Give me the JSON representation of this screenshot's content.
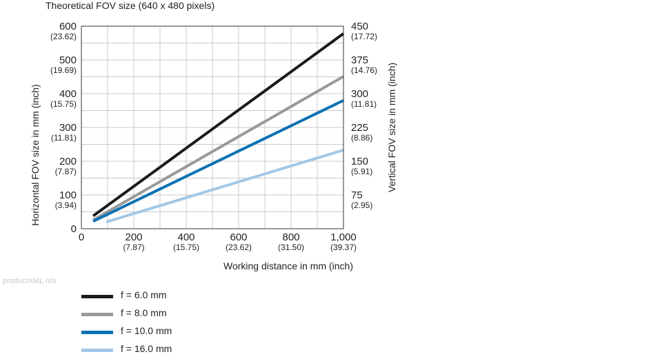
{
  "chart_data": {
    "type": "line",
    "title": "Theoretical FOV size (640 x 480 pixels)",
    "xlabel": "Working distance in mm (inch)",
    "ylabel_left": "Horizontal FOV size in mm (inch)",
    "ylabel_right": "Vertical FOV size in mm (inch)",
    "xlim": [
      0,
      1000
    ],
    "ylim_left": [
      0,
      600
    ],
    "ylim_right": [
      0,
      450
    ],
    "grid": true,
    "x_ticks": [
      {
        "value": 0,
        "main": "0",
        "sub": ""
      },
      {
        "value": 200,
        "main": "200",
        "sub": "(7.87)"
      },
      {
        "value": 400,
        "main": "400",
        "sub": "(15.75)"
      },
      {
        "value": 600,
        "main": "600",
        "sub": "(23.62)"
      },
      {
        "value": 800,
        "main": "800",
        "sub": "(31.50)"
      },
      {
        "value": 1000,
        "main": "1,000",
        "sub": "(39.37)"
      }
    ],
    "y_left_ticks": [
      {
        "value": 0,
        "main": "0",
        "sub": ""
      },
      {
        "value": 100,
        "main": "100",
        "sub": "(3.94)"
      },
      {
        "value": 200,
        "main": "200",
        "sub": "(7.87)"
      },
      {
        "value": 300,
        "main": "300",
        "sub": "(11.81)"
      },
      {
        "value": 400,
        "main": "400",
        "sub": "(15.75)"
      },
      {
        "value": 500,
        "main": "500",
        "sub": "(19.69)"
      },
      {
        "value": 600,
        "main": "600",
        "sub": "(23.62)"
      }
    ],
    "y_right_ticks": [
      {
        "value": 75,
        "main": "75",
        "sub": "(2.95)"
      },
      {
        "value": 150,
        "main": "150",
        "sub": "(5.91)"
      },
      {
        "value": 225,
        "main": "225",
        "sub": "(8.86)"
      },
      {
        "value": 300,
        "main": "300",
        "sub": "(11.81)"
      },
      {
        "value": 375,
        "main": "375",
        "sub": "(14.76)"
      },
      {
        "value": 450,
        "main": "450",
        "sub": "(17.72)"
      }
    ],
    "series": [
      {
        "name": "f = 6.0 mm",
        "color": "#1a1a1a",
        "x": [
          45,
          1000
        ],
        "y": [
          38,
          578
        ]
      },
      {
        "name": "f = 8.0 mm",
        "color": "#999999",
        "x": [
          45,
          1000
        ],
        "y": [
          26,
          451
        ]
      },
      {
        "name": "f = 10.0 mm",
        "color": "#0d72b3",
        "x": [
          45,
          1000
        ],
        "y": [
          22,
          380
        ]
      },
      {
        "name": "f = 16.0 mm",
        "color": "#a3c8e6",
        "x": [
          95,
          1000
        ],
        "y": [
          20,
          233
        ]
      }
    ]
  },
  "watermark": "productXML n/a"
}
